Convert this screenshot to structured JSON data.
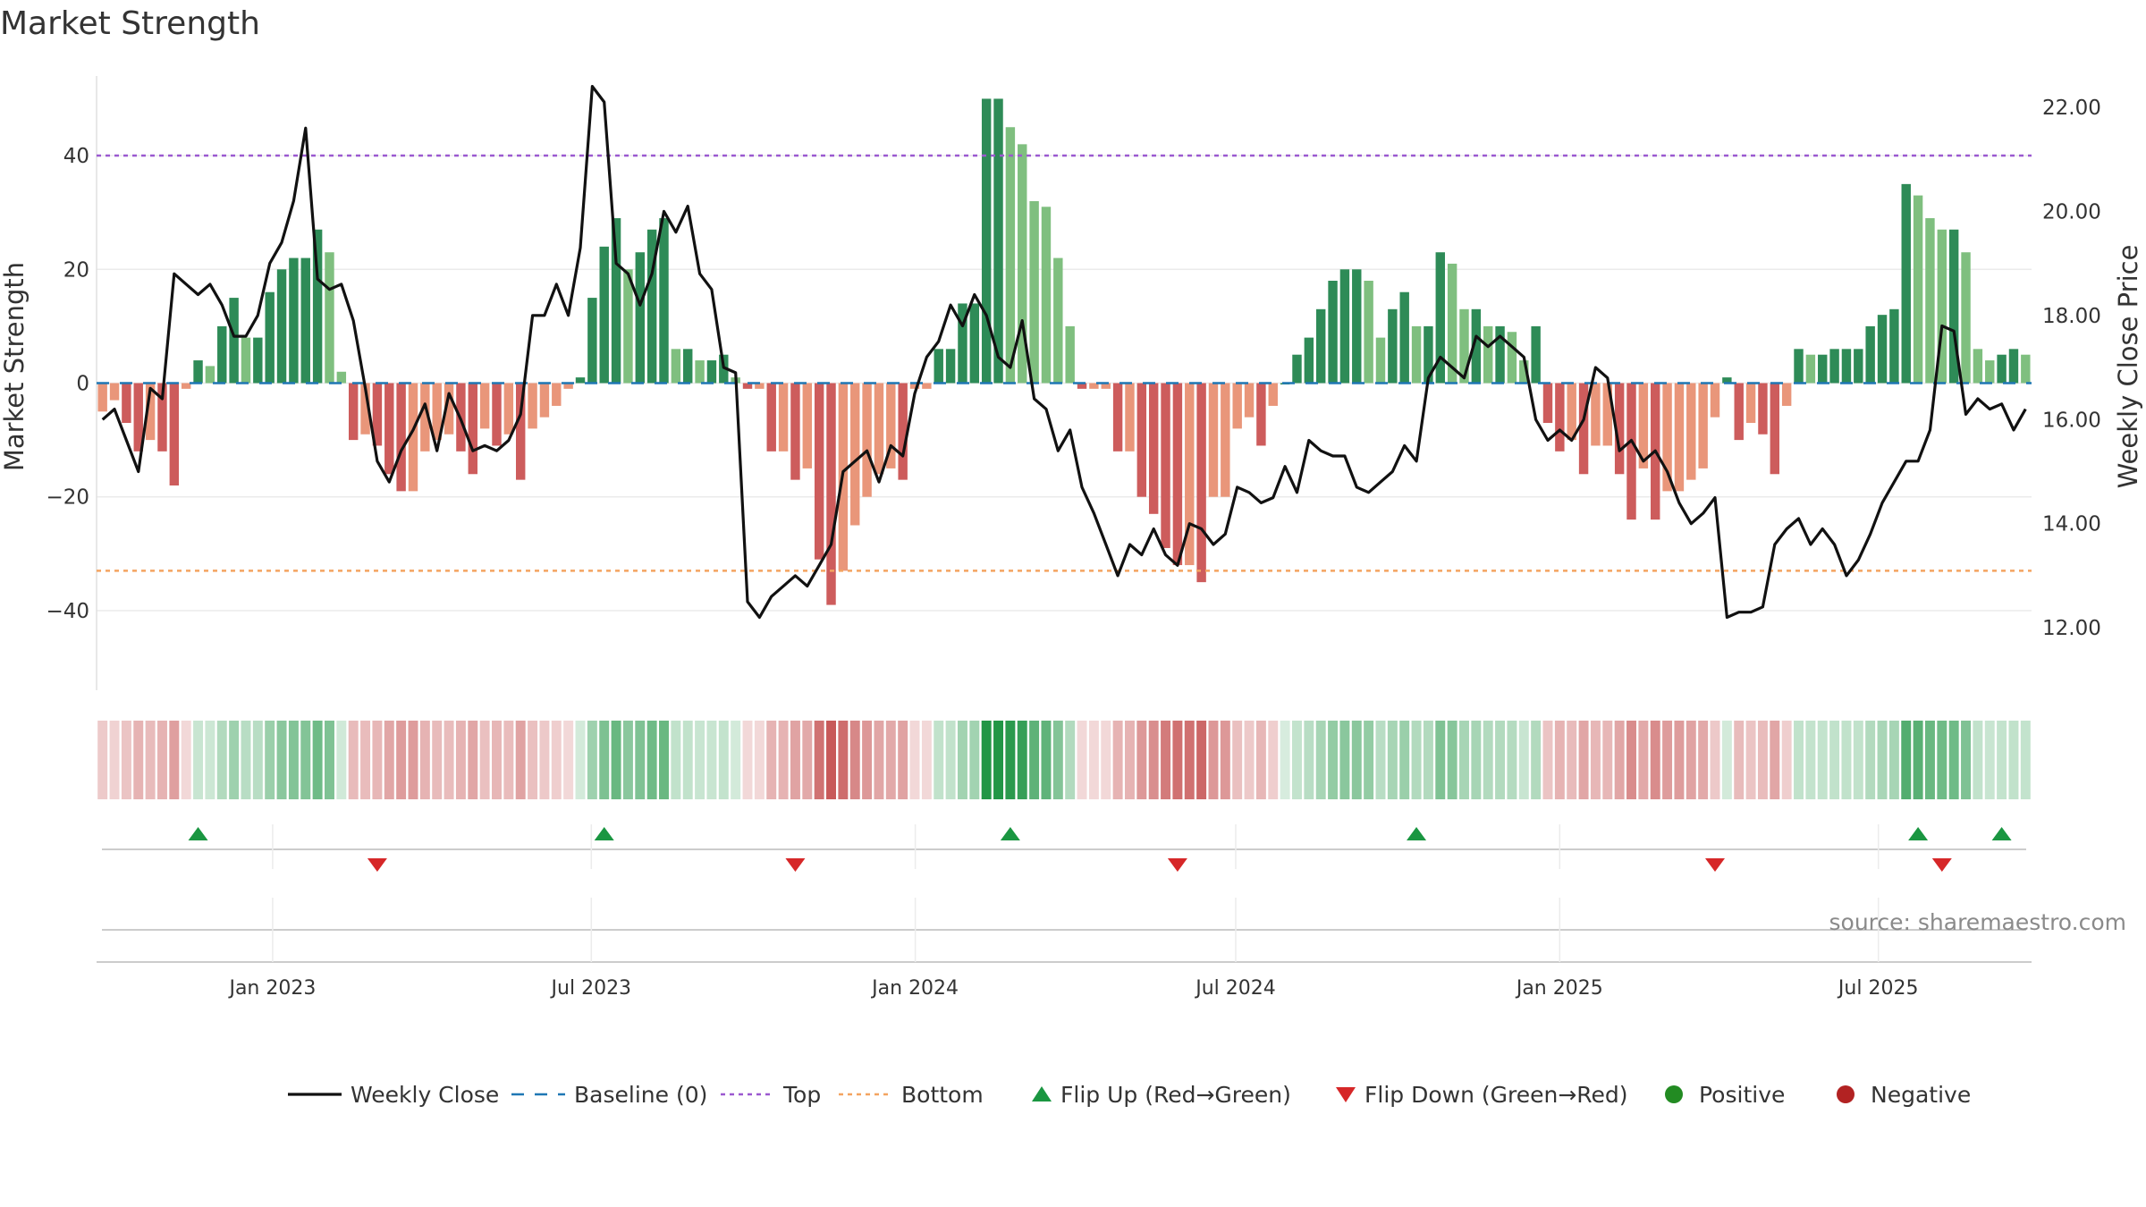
{
  "chart_data": {
    "type": "bar",
    "title": "Market Strength",
    "ylabel": "Market Strength",
    "y2label": "Weekly Close Price",
    "ylim": [
      -54,
      54
    ],
    "y2lim": [
      10.8,
      22.6
    ],
    "yticks": [
      -40,
      -20,
      0,
      20,
      40
    ],
    "y2ticks": [
      "12.00",
      "14.00",
      "16.00",
      "18.00",
      "20.00",
      "22.00"
    ],
    "x_start": "2022-09-23",
    "x_end": "2025-09-26",
    "xticks": [
      {
        "date": "2023-01-01",
        "label": "Jan 2023"
      },
      {
        "date": "2023-07-01",
        "label": "Jul 2023"
      },
      {
        "date": "2024-01-01",
        "label": "Jan 2024"
      },
      {
        "date": "2024-07-01",
        "label": "Jul 2024"
      },
      {
        "date": "2025-01-01",
        "label": "Jan 2025"
      },
      {
        "date": "2025-07-01",
        "label": "Jul 2025"
      }
    ],
    "top_line": 40,
    "bottom_line": -33,
    "strength": [
      -5,
      -3,
      -7,
      -12,
      -10,
      -12,
      -18,
      -1,
      4,
      3,
      10,
      15,
      8,
      8,
      16,
      20,
      22,
      22,
      27,
      23,
      2,
      -10,
      -9,
      -11,
      -16,
      -19,
      -19,
      -12,
      -10,
      -9,
      -12,
      -16,
      -8,
      -11,
      -9,
      -17,
      -8,
      -6,
      -4,
      -1,
      1,
      15,
      24,
      29,
      20,
      23,
      27,
      29,
      6,
      6,
      4,
      4,
      5,
      1,
      -1,
      -1,
      -12,
      -12,
      -17,
      -15,
      -31,
      -39,
      -33,
      -25,
      -20,
      -16,
      -15,
      -17,
      -1,
      -1,
      6,
      6,
      14,
      14,
      50,
      50,
      45,
      42,
      32,
      31,
      22,
      10,
      -1,
      -1,
      -1,
      -12,
      -12,
      -20,
      -23,
      -29,
      -32,
      -32,
      -35,
      -20,
      -20,
      -8,
      -6,
      -11,
      -4,
      0,
      5,
      8,
      13,
      18,
      20,
      20,
      18,
      8,
      13,
      16,
      10,
      10,
      23,
      21,
      13,
      13,
      10,
      10,
      9,
      4,
      10,
      -7,
      -12,
      -10,
      -16,
      -11,
      -11,
      -16,
      -24,
      -15,
      -24,
      -19,
      -19,
      -17,
      -15,
      -6,
      1,
      -10,
      -7,
      -9,
      -16,
      -4,
      6,
      5,
      5,
      6,
      6,
      6,
      10,
      12,
      13,
      35,
      33,
      29,
      27,
      27,
      23,
      6,
      4,
      5,
      6,
      5
    ],
    "close": [
      16.0,
      16.2,
      15.6,
      15.0,
      16.6,
      16.4,
      18.8,
      18.6,
      18.4,
      18.6,
      18.2,
      17.6,
      17.6,
      18.0,
      19.0,
      19.4,
      20.2,
      21.6,
      18.7,
      18.5,
      18.6,
      17.9,
      16.6,
      15.2,
      14.8,
      15.4,
      15.8,
      16.3,
      15.4,
      16.5,
      16.0,
      15.4,
      15.5,
      15.4,
      15.6,
      16.1,
      18.0,
      18.0,
      18.6,
      18.0,
      19.3,
      22.4,
      22.1,
      19.0,
      18.8,
      18.2,
      18.8,
      20.0,
      19.6,
      20.1,
      18.8,
      18.5,
      17.0,
      16.9,
      12.5,
      12.2,
      12.6,
      12.8,
      13.0,
      12.8,
      13.2,
      13.6,
      15.0,
      15.2,
      15.4,
      14.8,
      15.5,
      15.3,
      16.5,
      17.2,
      17.5,
      18.2,
      17.8,
      18.4,
      18.0,
      17.2,
      17.0,
      17.9,
      16.4,
      16.2,
      15.4,
      15.8,
      14.7,
      14.2,
      13.6,
      13.0,
      13.6,
      13.4,
      13.9,
      13.4,
      13.2,
      14.0,
      13.9,
      13.6,
      13.8,
      14.7,
      14.6,
      14.4,
      14.5,
      15.1,
      14.6,
      15.6,
      15.4,
      15.3,
      15.3,
      14.7,
      14.6,
      14.8,
      15.0,
      15.5,
      15.2,
      16.8,
      17.2,
      17.0,
      16.8,
      17.6,
      17.4,
      17.6,
      17.4,
      17.2,
      16.0,
      15.6,
      15.8,
      15.6,
      16.0,
      17.0,
      16.8,
      15.4,
      15.6,
      15.2,
      15.4,
      15.0,
      14.4,
      14.0,
      14.2,
      14.5,
      12.2,
      12.3,
      12.3,
      12.4,
      13.6,
      13.9,
      14.1,
      13.6,
      13.9,
      13.6,
      13.0,
      13.3,
      13.8,
      14.4,
      14.8,
      15.2,
      15.2,
      15.8,
      17.8,
      17.7,
      16.1,
      16.4,
      16.2,
      16.3,
      15.8,
      16.2
    ],
    "flips_up": [
      8,
      42,
      76,
      110,
      152,
      159
    ],
    "flips_down": [
      23,
      58,
      90,
      135,
      154
    ],
    "colors": {
      "pos_strong": "#2e8b57",
      "pos_light": "#7fbf7f",
      "neg_strong": "#cd5c5c",
      "neg_light": "#e9967a",
      "close_line": "#111111",
      "baseline": "#1f77b4",
      "top": "#9b59d0",
      "bottom": "#f4a460",
      "flip_up": "#1a9641",
      "flip_down": "#d62728",
      "positive": "#228b22",
      "negative": "#b22222"
    },
    "legend": [
      {
        "label": "Weekly Close",
        "symbol": "line"
      },
      {
        "label": "Baseline (0)",
        "symbol": "dash"
      },
      {
        "label": "Top",
        "symbol": "dot-purple"
      },
      {
        "label": "Bottom",
        "symbol": "dot-orange"
      },
      {
        "label": "Flip Up (Red→Green)",
        "symbol": "tri-up"
      },
      {
        "label": "Flip Down (Green→Red)",
        "symbol": "tri-down"
      },
      {
        "label": "Positive",
        "symbol": "circle-green"
      },
      {
        "label": "Negative",
        "symbol": "circle-red"
      }
    ],
    "legend_position": "bottom"
  },
  "source_text": "source: sharemaestro.com"
}
